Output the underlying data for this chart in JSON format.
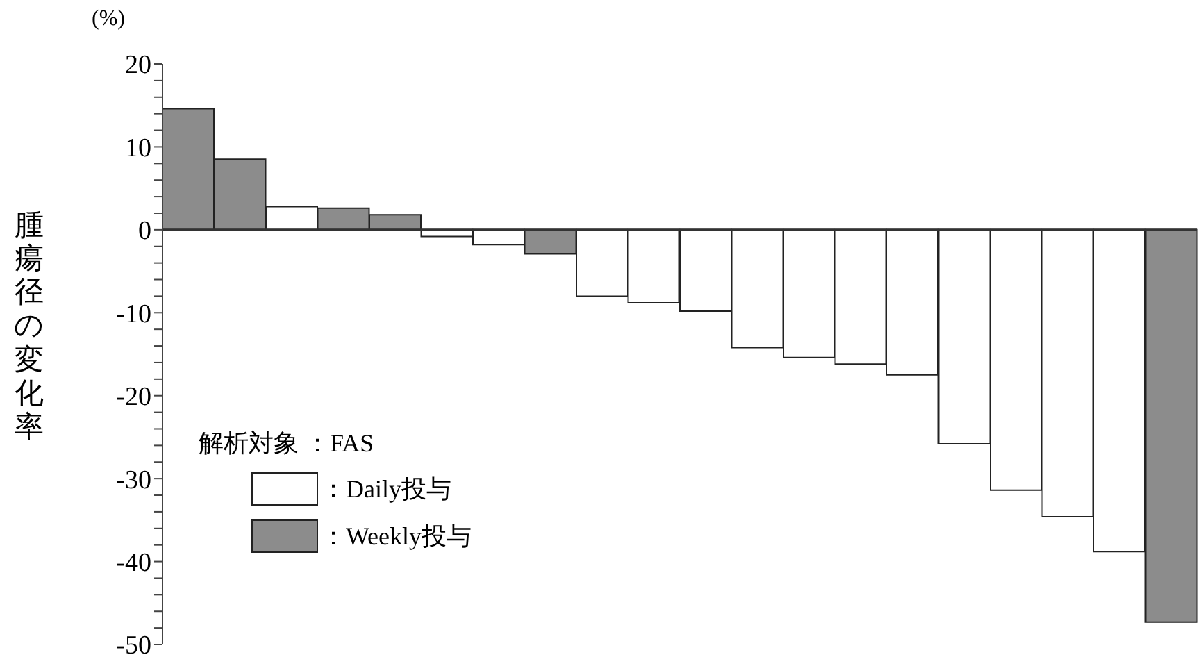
{
  "chart_data": {
    "type": "bar",
    "ylabel": "腫瘍径の変化率",
    "annotations": [
      "(%)"
    ],
    "legend_title": "解析対象 ：FAS",
    "legend": "bottom left",
    "stacked": true,
    "categories": [
      null,
      null,
      null,
      null,
      null,
      null,
      null,
      null,
      null,
      null,
      null,
      null,
      null,
      null,
      null,
      null,
      null,
      null,
      null,
      null
    ],
    "series": [
      {
        "name": "：Daily投与",
        "color": "#ffffff",
        "values": [
          null,
          null,
          2.8,
          null,
          null,
          -0.8,
          -1.8,
          null,
          -8.0,
          -8.8,
          -9.8,
          -14.2,
          -15.4,
          -16.2,
          -17.5,
          -25.8,
          -31.4,
          -34.6,
          -38.8,
          null
        ]
      },
      {
        "name": "：Weekly投与",
        "color": "#8c8c8c",
        "values": [
          14.6,
          8.5,
          null,
          2.6,
          1.8,
          null,
          null,
          -2.9,
          null,
          null,
          null,
          null,
          null,
          null,
          null,
          null,
          null,
          null,
          null,
          -47.3
        ]
      }
    ],
    "ylim": [
      -50,
      20
    ],
    "yticks": [
      -50,
      {
        "value": -48,
        "label": null
      },
      {
        "value": -46,
        "label": null
      },
      {
        "value": -44,
        "label": null
      },
      {
        "value": -42,
        "label": null
      },
      -40,
      {
        "value": -38,
        "label": null
      },
      {
        "value": -36,
        "label": null
      },
      {
        "value": -34,
        "label": null
      },
      {
        "value": -32,
        "label": null
      },
      -30,
      {
        "value": -28,
        "label": null
      },
      {
        "value": -26,
        "label": null
      },
      {
        "value": -24,
        "label": null
      },
      {
        "value": -22,
        "label": null
      },
      -20,
      {
        "value": -18,
        "label": null
      },
      {
        "value": -16,
        "label": null
      },
      {
        "value": -14,
        "label": null
      },
      {
        "value": -12,
        "label": null
      },
      -10,
      {
        "value": -8,
        "label": null
      },
      {
        "value": -6,
        "label": null
      },
      {
        "value": -4,
        "label": null
      },
      {
        "value": -2,
        "label": null
      },
      0,
      {
        "value": 2,
        "label": null
      },
      {
        "value": 4,
        "label": null
      },
      {
        "value": 6,
        "label": null
      },
      {
        "value": 8,
        "label": null
      },
      10,
      {
        "value": 12,
        "label": null
      },
      {
        "value": 14,
        "label": null
      },
      {
        "value": 16,
        "label": null
      },
      {
        "value": 18,
        "label": null
      },
      20
    ],
    "ref_lines": [
      {
        "axis": "y",
        "value": 0,
        "color": "#333333"
      }
    ],
    "tick_labels": "y"
  }
}
